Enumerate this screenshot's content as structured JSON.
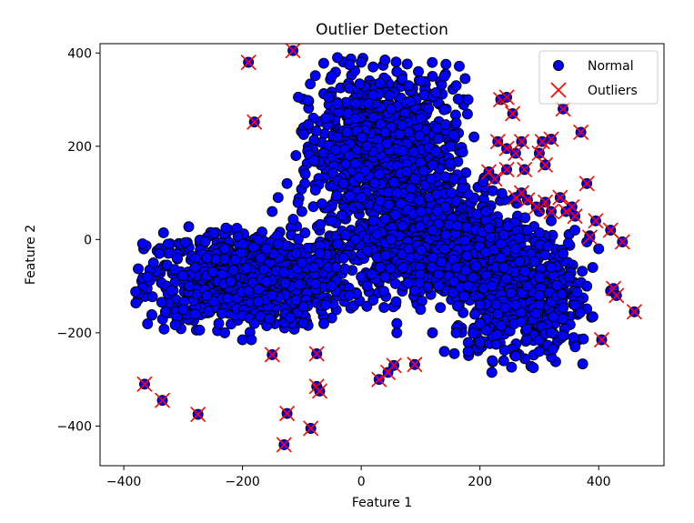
{
  "chart_data": {
    "type": "scatter",
    "title": "Outlier Detection",
    "xlabel": "Feature 1",
    "ylabel": "Feature 2",
    "xlim": [
      -440,
      510
    ],
    "ylim": [
      -485,
      420
    ],
    "xticks": [
      -400,
      -200,
      0,
      200,
      400
    ],
    "yticks": [
      -400,
      -200,
      0,
      200,
      400
    ],
    "xtick_labels": [
      "−400",
      "−200",
      "0",
      "200",
      "400"
    ],
    "ytick_labels": [
      "−400",
      "−200",
      "0",
      "200",
      "400"
    ],
    "grid": false,
    "legend": {
      "placement": "top-right",
      "entries": [
        "Normal",
        "Outliers"
      ]
    },
    "series": [
      {
        "name": "Normal",
        "marker": "circle",
        "color": "#0000ff",
        "edgecolor": "#000000",
        "clusters": [
          {
            "region": "left lobe",
            "x_range": [
              -380,
              0
            ],
            "y_range": [
              -200,
              30
            ]
          },
          {
            "region": "upper column",
            "x_range": [
              -120,
              180
            ],
            "y_range": [
              0,
              390
            ]
          },
          {
            "region": "central band",
            "x_range": [
              -60,
              300
            ],
            "y_range": [
              -150,
              150
            ]
          },
          {
            "region": "right lower cluster",
            "x_range": [
              150,
              400
            ],
            "y_range": [
              -280,
              30
            ]
          }
        ],
        "points": [
          [
            -380,
            -112
          ],
          [
            -360,
            -80
          ],
          [
            -350,
            -50
          ],
          [
            -330,
            -155
          ],
          [
            -300,
            -150
          ],
          [
            -280,
            -160
          ],
          [
            -260,
            -120
          ],
          [
            -240,
            -180
          ],
          [
            -230,
            -200
          ],
          [
            -200,
            -215
          ],
          [
            -185,
            -215
          ],
          [
            -180,
            -180
          ],
          [
            -170,
            -165
          ],
          [
            -155,
            -170
          ],
          [
            -160,
            -20
          ],
          [
            -150,
            60
          ],
          [
            -140,
            90
          ],
          [
            -125,
            120
          ],
          [
            -110,
            180
          ],
          [
            -100,
            60
          ],
          [
            -95,
            120
          ],
          [
            -80,
            170
          ],
          [
            -60,
            260
          ],
          [
            -55,
            305
          ],
          [
            -50,
            350
          ],
          [
            -40,
            390
          ],
          [
            -20,
            375
          ],
          [
            0,
            380
          ],
          [
            20,
            370
          ],
          [
            40,
            385
          ],
          [
            60,
            360
          ],
          [
            80,
            330
          ],
          [
            100,
            340
          ],
          [
            120,
            350
          ],
          [
            140,
            350
          ],
          [
            160,
            330
          ],
          [
            175,
            345
          ],
          [
            180,
            300
          ],
          [
            150,
            200
          ],
          [
            120,
            160
          ],
          [
            90,
            130
          ],
          [
            60,
            100
          ],
          [
            30,
            140
          ],
          [
            0,
            90
          ],
          [
            -30,
            120
          ],
          [
            -50,
            40
          ],
          [
            -30,
            -40
          ],
          [
            0,
            -80
          ],
          [
            20,
            -130
          ],
          [
            60,
            -180
          ],
          [
            60,
            -200
          ],
          [
            100,
            -150
          ],
          [
            120,
            -200
          ],
          [
            140,
            -240
          ],
          [
            160,
            -200
          ],
          [
            180,
            -240
          ],
          [
            200,
            -220
          ],
          [
            220,
            -285
          ],
          [
            240,
            -260
          ],
          [
            260,
            -250
          ],
          [
            290,
            -275
          ],
          [
            300,
            -240
          ],
          [
            320,
            -200
          ],
          [
            340,
            -170
          ],
          [
            360,
            -140
          ],
          [
            380,
            -100
          ],
          [
            390,
            -60
          ],
          [
            400,
            -20
          ],
          [
            380,
            -5
          ],
          [
            360,
            20
          ],
          [
            320,
            40
          ],
          [
            300,
            60
          ],
          [
            280,
            20
          ],
          [
            260,
            -20
          ],
          [
            240,
            -60
          ],
          [
            220,
            -100
          ],
          [
            200,
            -140
          ],
          [
            180,
            -100
          ],
          [
            160,
            -60
          ],
          [
            140,
            -20
          ],
          [
            120,
            20
          ],
          [
            100,
            60
          ],
          [
            80,
            -20
          ],
          [
            50,
            0
          ],
          [
            20,
            40
          ],
          [
            -10,
            0
          ],
          [
            -40,
            -10
          ],
          [
            -70,
            -30
          ],
          [
            -100,
            -50
          ],
          [
            -130,
            -70
          ],
          [
            -160,
            -90
          ],
          [
            -190,
            -110
          ],
          [
            -220,
            -90
          ],
          [
            -250,
            -70
          ],
          [
            -280,
            -60
          ],
          [
            -310,
            -40
          ],
          [
            -340,
            -30
          ],
          [
            -320,
            -110
          ],
          [
            -290,
            -100
          ],
          [
            -260,
            -40
          ],
          [
            -230,
            -20
          ],
          [
            -200,
            -10
          ],
          [
            -170,
            -40
          ],
          [
            -140,
            -10
          ],
          [
            -110,
            -30
          ],
          [
            -80,
            -60
          ],
          [
            -50,
            -100
          ],
          [
            -20,
            -120
          ],
          [
            10,
            -100
          ],
          [
            40,
            -80
          ],
          [
            70,
            -60
          ],
          [
            200,
            -180
          ],
          [
            230,
            -160
          ],
          [
            260,
            -140
          ],
          [
            280,
            -100
          ],
          [
            300,
            -120
          ],
          [
            320,
            -60
          ],
          [
            340,
            -30
          ],
          [
            350,
            -80
          ],
          [
            420,
            -110
          ],
          [
            100,
            260
          ],
          [
            80,
            230
          ],
          [
            50,
            280
          ],
          [
            20,
            310
          ],
          [
            -10,
            260
          ],
          [
            -40,
            220
          ],
          [
            -20,
            180
          ],
          [
            10,
            200
          ],
          [
            40,
            230
          ],
          [
            70,
            190
          ],
          [
            160,
            250
          ],
          [
            190,
            220
          ],
          [
            170,
            110
          ],
          [
            210,
            60
          ],
          [
            240,
            10
          ],
          [
            130,
            -100
          ],
          [
            90,
            -110
          ],
          [
            -60,
            -140
          ],
          [
            -110,
            -130
          ],
          [
            -150,
            -120
          ]
        ]
      },
      {
        "name": "Outliers",
        "marker": "x",
        "color": "#ff0000",
        "points": [
          [
            -190,
            380
          ],
          [
            -115,
            405
          ],
          [
            -180,
            252
          ],
          [
            -365,
            -310
          ],
          [
            -335,
            -345
          ],
          [
            -275,
            -375
          ],
          [
            -150,
            -247
          ],
          [
            -125,
            -373
          ],
          [
            -130,
            -440
          ],
          [
            -85,
            -405
          ],
          [
            -75,
            -245
          ],
          [
            -75,
            -315
          ],
          [
            -70,
            -325
          ],
          [
            30,
            -300
          ],
          [
            45,
            -285
          ],
          [
            55,
            -270
          ],
          [
            90,
            -268
          ],
          [
            235,
            300
          ],
          [
            245,
            305
          ],
          [
            255,
            270
          ],
          [
            230,
            210
          ],
          [
            245,
            195
          ],
          [
            260,
            185
          ],
          [
            270,
            210
          ],
          [
            300,
            185
          ],
          [
            305,
            210
          ],
          [
            320,
            215
          ],
          [
            340,
            280
          ],
          [
            370,
            230
          ],
          [
            310,
            160
          ],
          [
            275,
            150
          ],
          [
            245,
            150
          ],
          [
            215,
            145
          ],
          [
            225,
            130
          ],
          [
            260,
            90
          ],
          [
            270,
            100
          ],
          [
            280,
            85
          ],
          [
            295,
            70
          ],
          [
            310,
            80
          ],
          [
            320,
            60
          ],
          [
            335,
            90
          ],
          [
            345,
            60
          ],
          [
            355,
            70
          ],
          [
            360,
            50
          ],
          [
            380,
            120
          ],
          [
            395,
            40
          ],
          [
            420,
            20
          ],
          [
            385,
            5
          ],
          [
            440,
            -5
          ],
          [
            425,
            -105
          ],
          [
            430,
            -120
          ],
          [
            460,
            -155
          ],
          [
            405,
            -215
          ]
        ]
      }
    ]
  }
}
